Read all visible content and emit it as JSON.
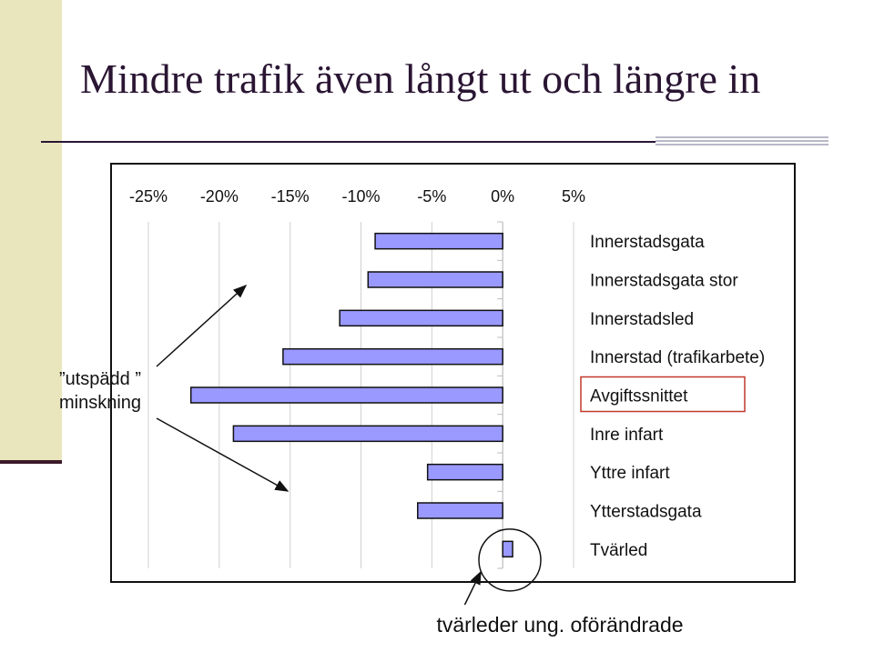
{
  "slide": {
    "title": "Mindre trafik även långt ut och längre in",
    "callout_line1": "”utspädd ”",
    "callout_line2": "minskning",
    "footer_note": "tvärleder ung. oförändrade"
  },
  "colors": {
    "bar_fill": "#9999ff",
    "bar_stroke": "#111111",
    "highlight_box": "#c0392b",
    "band": "#e9e6bd",
    "title": "#2a1533"
  },
  "chart_data": {
    "type": "bar",
    "orientation": "horizontal",
    "x_ticks": [
      "-25%",
      "-20%",
      "-15%",
      "-10%",
      "-5%",
      "0%",
      "5%"
    ],
    "xlim": [
      -25,
      5
    ],
    "categories": [
      "Innerstadsgata",
      "Innerstadsgata stor",
      "Innerstadsled",
      "Innerstad (trafikarbete)",
      "Avgiftssnittet",
      "Inre infart",
      "Yttre infart",
      "Ytterstadsgata",
      "Tvärled"
    ],
    "values": [
      -9,
      -9.5,
      -11.5,
      -15.5,
      -22,
      -19,
      -5.3,
      -6,
      0.7
    ],
    "highlighted_category": "Avgiftssnittet",
    "grid": "vertical gridlines at each tick",
    "annotations": [
      "utspädd minskning arrows pointing up-right and down-right",
      "circle around Tvärled bar"
    ]
  }
}
